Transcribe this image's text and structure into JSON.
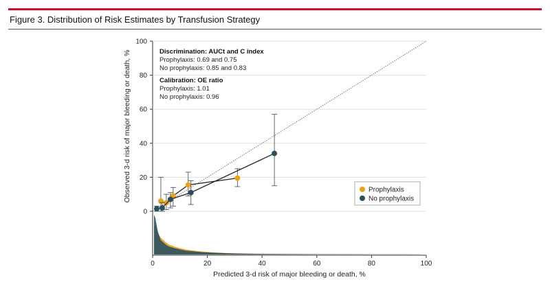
{
  "figure": {
    "title": "Figure 3. Distribution of Risk Estimates by Transfusion Strategy"
  },
  "chart_data": {
    "type": "scatter",
    "xlabel": "Predicted 3-d risk of major bleeding or death, %",
    "ylabel": "Observed 3-d risk of major bleeding or death, %",
    "xlim": [
      0,
      100
    ],
    "ylim": [
      0,
      100
    ],
    "x_ticks": [
      "0",
      "20",
      "40",
      "60",
      "80",
      "100"
    ],
    "y_ticks": [
      "0",
      "20",
      "40",
      "60",
      "80",
      "100"
    ],
    "grid": "horizontal",
    "reference_line": "diagonal",
    "legend_position": "right",
    "annotations": [
      {
        "heading": "Discrimination: AUCt and C index",
        "lines": [
          "Prophylaxis: 0.69 and 0.75",
          "No prophylaxis: 0.85 and 0.83"
        ]
      },
      {
        "heading": "Calibration: OE ratio",
        "lines": [
          "Prophylaxis: 1.01",
          "No prophylaxis: 0.96"
        ]
      }
    ],
    "series": [
      {
        "name": "Prophylaxis",
        "color": "#e8a317",
        "points": [
          {
            "x": 3,
            "y": 6,
            "lo": 0,
            "hi": 20
          },
          {
            "x": 5,
            "y": 5,
            "lo": 1,
            "hi": 10
          },
          {
            "x": 7.5,
            "y": 9,
            "lo": 3,
            "hi": 14
          },
          {
            "x": 13,
            "y": 15.5,
            "lo": 9,
            "hi": 23
          },
          {
            "x": 31,
            "y": 19.5,
            "lo": 14.5,
            "hi": 25
          }
        ]
      },
      {
        "name": "No prophylaxis",
        "color": "#2a5060",
        "points": [
          {
            "x": 1.5,
            "y": 1.5,
            "lo": 0,
            "hi": 3
          },
          {
            "x": 3.5,
            "y": 2,
            "lo": 0,
            "hi": 5
          },
          {
            "x": 6.5,
            "y": 7,
            "lo": 2,
            "hi": 11
          },
          {
            "x": 14,
            "y": 11,
            "lo": 4,
            "hi": 18
          },
          {
            "x": 44.5,
            "y": 34,
            "lo": 15,
            "hi": 57
          }
        ]
      }
    ],
    "distribution": {
      "type": "histogram",
      "bins_x": [
        0.5,
        1,
        1.5,
        2,
        2.5,
        3,
        4,
        5,
        6,
        8,
        10,
        12,
        15,
        18,
        22,
        26,
        30,
        35,
        40,
        50,
        60,
        70,
        80,
        90,
        98
      ],
      "no_prophylaxis": [
        1.0,
        0.92,
        0.72,
        0.55,
        0.45,
        0.36,
        0.3,
        0.24,
        0.2,
        0.16,
        0.13,
        0.1,
        0.08,
        0.06,
        0.045,
        0.035,
        0.025,
        0.02,
        0.015,
        0.01,
        0.008,
        0.006,
        0.005,
        0.004,
        0.003
      ],
      "prophylaxis": [
        0.7,
        0.75,
        0.62,
        0.55,
        0.48,
        0.42,
        0.36,
        0.3,
        0.25,
        0.2,
        0.16,
        0.13,
        0.1,
        0.075,
        0.055,
        0.04,
        0.03,
        0.024,
        0.018,
        0.012,
        0.009,
        0.007,
        0.005,
        0.004,
        0.003
      ]
    }
  }
}
